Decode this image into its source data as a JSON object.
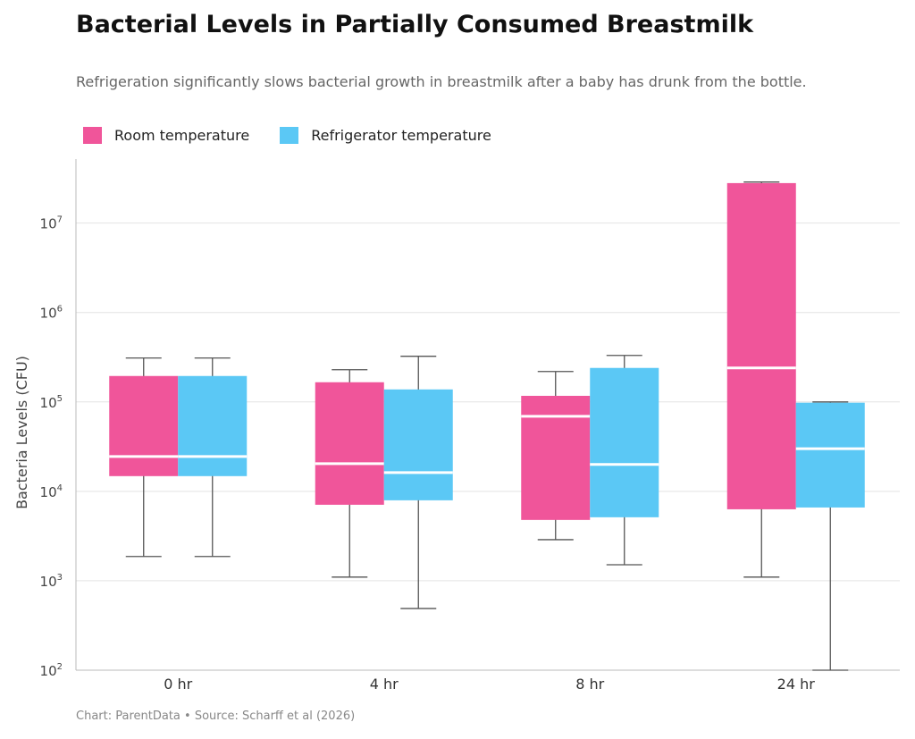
{
  "chart_data": {
    "type": "box",
    "title": "Bacterial Levels in Partially Consumed Breastmilk",
    "subtitle": "Refrigeration significantly slows bacterial growth in breastmilk after a baby has drunk from the bottle.",
    "ylabel": "Bacteria Levels (CFU)",
    "xlabel": "",
    "yscale": "log",
    "ylim": [
      100,
      52000000
    ],
    "yticks": [
      {
        "v": 100,
        "e": "2"
      },
      {
        "v": 1000,
        "e": "3"
      },
      {
        "v": 10000,
        "e": "4"
      },
      {
        "v": 100000,
        "e": "5"
      },
      {
        "v": 1000000,
        "e": "6"
      },
      {
        "v": 10000000,
        "e": "7"
      }
    ],
    "categories": [
      "0 hr",
      "4 hr",
      "8 hr",
      "24 hr"
    ],
    "legend_position": "top-left",
    "grid": true,
    "series": [
      {
        "name": "Room temperature",
        "color": "#F0559A",
        "boxes": [
          {
            "min": 1870,
            "q1": 14800,
            "median": 24500,
            "q3": 195000,
            "max": 310000
          },
          {
            "min": 1100,
            "q1": 7080,
            "median": 20400,
            "q3": 166000,
            "max": 229000
          },
          {
            "min": 2880,
            "q1": 4790,
            "median": 69000,
            "q3": 117000,
            "max": 219000
          },
          {
            "min": 1100,
            "q1": 6300,
            "median": 240000,
            "q3": 28000000,
            "max": 28800000
          }
        ]
      },
      {
        "name": "Refrigerator temperature",
        "color": "#5BC8F5",
        "boxes": [
          {
            "min": 1870,
            "q1": 14800,
            "median": 24500,
            "q3": 195000,
            "max": 310000
          },
          {
            "min": 490,
            "q1": 7940,
            "median": 16200,
            "q3": 138000,
            "max": 324000
          },
          {
            "min": 1510,
            "q1": 5130,
            "median": 20000,
            "q3": 240000,
            "max": 331000
          },
          {
            "min": 100,
            "q1": 6600,
            "median": 30000,
            "q3": 98000,
            "max": 100000
          }
        ]
      }
    ]
  },
  "footer": "Chart: ParentData  •  Source: Scharff et al (2026)"
}
